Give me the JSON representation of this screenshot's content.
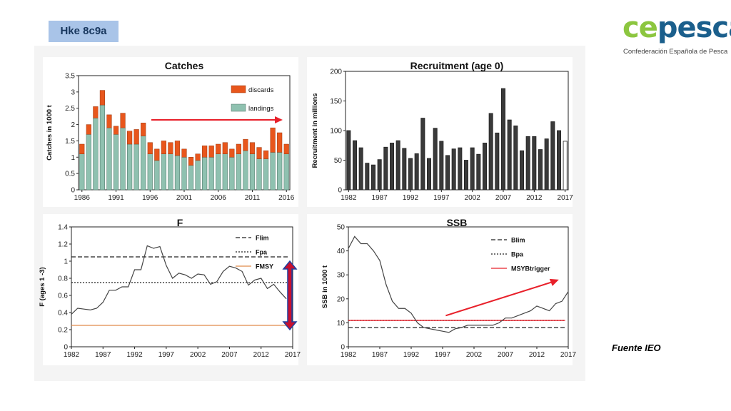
{
  "header": {
    "stock_tag": "Hke 8c9a"
  },
  "logo": {
    "word_a": "ce",
    "word_b": "pesca",
    "subtitle": "Confederación Española de Pesca",
    "colors": {
      "ce": "#8cc63f",
      "pesca": "#1b5f8c"
    }
  },
  "source_note": "Fuente IEO",
  "colors": {
    "landings": "#8fc1b0",
    "discards": "#e8561c",
    "trend_arrow": "#e8202a",
    "fmsy": "#e08a4a",
    "recruit_bar": "#3a3a3a"
  },
  "chart_data": [
    {
      "id": "catches",
      "type": "bar",
      "title": "Catches",
      "ylabel": "Catches in 1000 t",
      "ylim": [
        0,
        3.5
      ],
      "yticks": [
        "0",
        "0.5",
        "1",
        "1.5",
        "2",
        "2.5",
        "3",
        "3.5"
      ],
      "xticks": [
        "1986",
        "1991",
        "1996",
        "2001",
        "2006",
        "2011",
        "2016"
      ],
      "categories": [
        1986,
        1987,
        1988,
        1989,
        1990,
        1991,
        1992,
        1993,
        1994,
        1995,
        1996,
        1997,
        1998,
        1999,
        2000,
        2001,
        2002,
        2003,
        2004,
        2005,
        2006,
        2007,
        2008,
        2009,
        2010,
        2011,
        2012,
        2013,
        2014,
        2015,
        2016
      ],
      "series": [
        {
          "name": "landings",
          "values": [
            1.1,
            1.7,
            2.2,
            2.6,
            1.9,
            1.7,
            1.9,
            1.4,
            1.4,
            1.65,
            1.1,
            0.9,
            1.1,
            1.1,
            1.05,
            1.0,
            0.75,
            0.9,
            1.0,
            1.0,
            1.1,
            1.1,
            1.0,
            1.1,
            1.2,
            1.1,
            0.95,
            0.95,
            1.15,
            1.15,
            1.1
          ]
        },
        {
          "name": "discards",
          "values": [
            0.3,
            0.3,
            0.35,
            0.45,
            0.4,
            0.25,
            0.45,
            0.4,
            0.45,
            0.4,
            0.35,
            0.35,
            0.4,
            0.35,
            0.45,
            0.25,
            0.25,
            0.2,
            0.35,
            0.35,
            0.3,
            0.35,
            0.25,
            0.3,
            0.35,
            0.35,
            0.35,
            0.25,
            0.75,
            0.6,
            0.3
          ]
        }
      ],
      "legend": [
        "discards",
        "landings"
      ],
      "legend_position": "top-right"
    },
    {
      "id": "recruitment",
      "type": "bar",
      "title": "Recruitment (age 0)",
      "ylabel": "Recruitment in millions",
      "ylim": [
        0,
        200
      ],
      "yticks": [
        "0",
        "50",
        "100",
        "150",
        "200"
      ],
      "xticks": [
        "1982",
        "1987",
        "1992",
        "1997",
        "2002",
        "2007",
        "2012",
        "2017"
      ],
      "categories": [
        1982,
        1983,
        1984,
        1985,
        1986,
        1987,
        1988,
        1989,
        1990,
        1991,
        1992,
        1993,
        1994,
        1995,
        1996,
        1997,
        1998,
        1999,
        2000,
        2001,
        2002,
        2003,
        2004,
        2005,
        2006,
        2007,
        2008,
        2009,
        2010,
        2011,
        2012,
        2013,
        2014,
        2015,
        2016,
        2017
      ],
      "values": [
        100,
        83,
        71,
        45,
        42,
        51,
        72,
        79,
        83,
        70,
        53,
        61,
        121,
        53,
        104,
        82,
        58,
        69,
        71,
        50,
        71,
        60,
        79,
        129,
        96,
        171,
        118,
        108,
        66,
        90,
        90,
        68,
        86,
        115,
        100,
        82
      ],
      "last_bar_open": true
    },
    {
      "id": "fishing_mortality",
      "type": "line",
      "title": "F",
      "ylabel": "F (ages 1 -3)",
      "ylim": [
        0,
        1.4
      ],
      "yticks": [
        "0",
        "0.2",
        "0.4",
        "0.6",
        "0.8",
        "1",
        "1.2",
        "1.4"
      ],
      "xticks": [
        "1982",
        "1987",
        "1992",
        "1997",
        "2002",
        "2007",
        "2012",
        "2017"
      ],
      "x": [
        1982,
        1983,
        1984,
        1985,
        1986,
        1987,
        1988,
        1989,
        1990,
        1991,
        1992,
        1993,
        1994,
        1995,
        1996,
        1997,
        1998,
        1999,
        2000,
        2001,
        2002,
        2003,
        2004,
        2005,
        2006,
        2007,
        2008,
        2009,
        2010,
        2011,
        2012,
        2013,
        2014,
        2015,
        2016
      ],
      "y": [
        0.38,
        0.45,
        0.44,
        0.43,
        0.45,
        0.52,
        0.66,
        0.66,
        0.7,
        0.7,
        0.9,
        0.9,
        1.18,
        1.15,
        1.17,
        0.95,
        0.8,
        0.86,
        0.84,
        0.8,
        0.85,
        0.84,
        0.73,
        0.76,
        0.88,
        0.94,
        0.92,
        0.88,
        0.72,
        0.78,
        0.8,
        0.68,
        0.73,
        0.64,
        0.56
      ],
      "reference_lines": [
        {
          "name": "Flim",
          "value": 1.05,
          "style": "dashed"
        },
        {
          "name": "Fpa",
          "value": 0.75,
          "style": "dotted"
        },
        {
          "name": "FMSY",
          "value": 0.25,
          "style": "solid"
        }
      ],
      "legend_position": "top-right"
    },
    {
      "id": "ssb",
      "type": "line",
      "title": "SSB",
      "ylabel": "SSB in 1000 t",
      "ylim": [
        0,
        50
      ],
      "yticks": [
        "0",
        "10",
        "20",
        "30",
        "40",
        "50"
      ],
      "xticks": [
        "1982",
        "1987",
        "1992",
        "1997",
        "2002",
        "2007",
        "2012",
        "2017"
      ],
      "x": [
        1982,
        1983,
        1984,
        1985,
        1986,
        1987,
        1988,
        1989,
        1990,
        1991,
        1992,
        1993,
        1994,
        1995,
        1996,
        1997,
        1998,
        1999,
        2000,
        2001,
        2002,
        2003,
        2004,
        2005,
        2006,
        2007,
        2008,
        2009,
        2010,
        2011,
        2012,
        2013,
        2014,
        2015,
        2016,
        2017
      ],
      "y": [
        41,
        46,
        43,
        43,
        40,
        36,
        26,
        19,
        16,
        16,
        14,
        10,
        8,
        7.5,
        7,
        6.5,
        6,
        7.5,
        8,
        9,
        9,
        9,
        9,
        9,
        10,
        12,
        12,
        13,
        14,
        15,
        17,
        16,
        15,
        18,
        19,
        23
      ],
      "reference_lines": [
        {
          "name": "Blim",
          "value": 8,
          "style": "dashed"
        },
        {
          "name": "Bpa",
          "value": 11,
          "style": "dotted"
        },
        {
          "name": "MSYBtrigger",
          "value": 11,
          "style": "solid"
        }
      ],
      "legend_position": "top-right"
    }
  ]
}
